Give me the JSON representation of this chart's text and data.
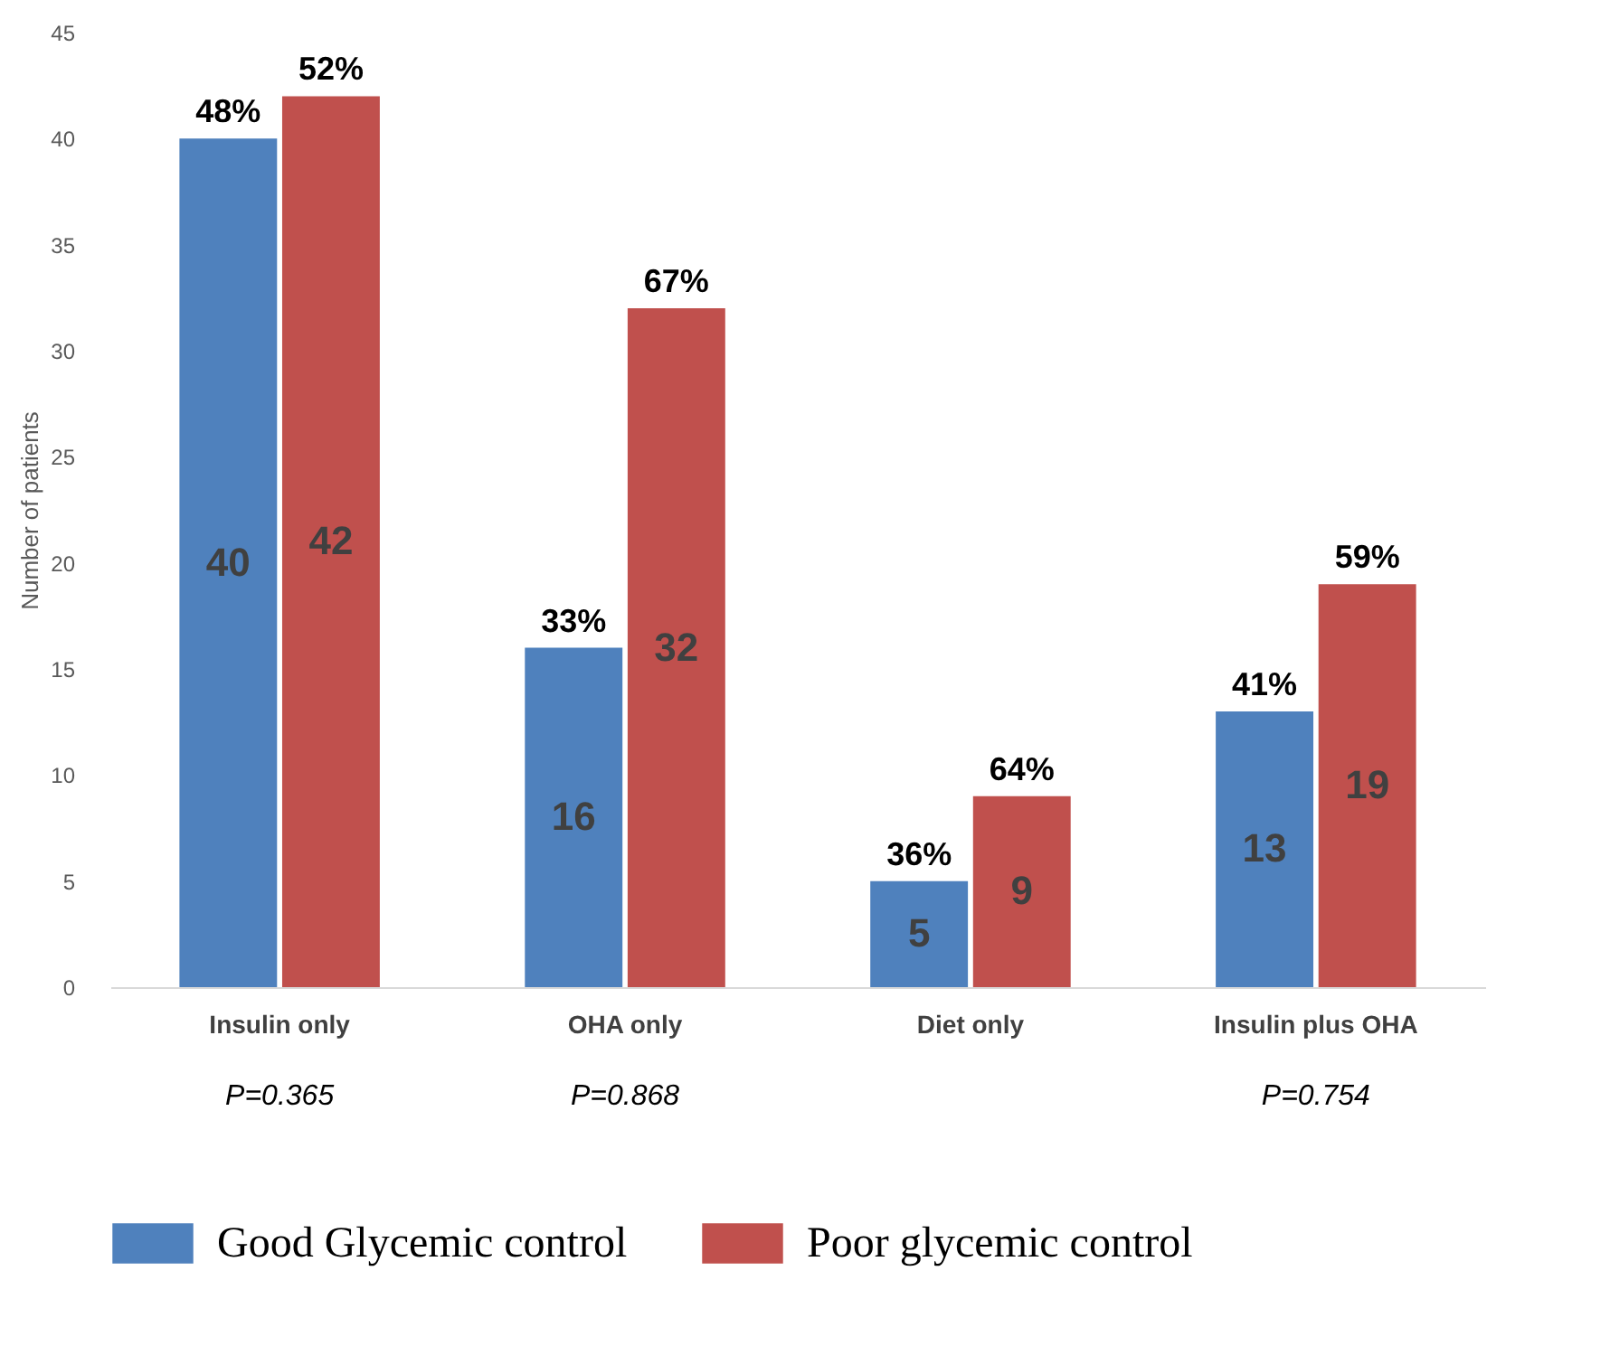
{
  "chart_data": {
    "type": "bar",
    "ylabel": "Number of patients",
    "categories": [
      "Insulin only",
      "OHA only",
      "Diet only",
      "Insulin plus OHA"
    ],
    "series": [
      {
        "name": "Good Glycemic control",
        "color": "#4f81bd",
        "values": [
          40,
          16,
          5,
          13
        ]
      },
      {
        "name": "Poor glycemic control",
        "color": "#c0504d",
        "values": [
          42,
          32,
          9,
          19
        ]
      }
    ],
    "ylim": [
      0,
      45
    ],
    "yticks": [
      0,
      5,
      10,
      15,
      20,
      25,
      30,
      35,
      40,
      45
    ],
    "grid": false,
    "legend": "bottom",
    "data_labels": true,
    "annotations": [
      {
        "text": "48%",
        "x": "Insulin only",
        "y": 40
      },
      {
        "text": "52%",
        "x": "Insulin only",
        "y": 42
      },
      {
        "text": "33%",
        "x": "OHA only",
        "y": 16
      },
      {
        "text": "67%",
        "x": "OHA only",
        "y": 32
      },
      {
        "text": "36%",
        "x": "Diet only",
        "y": 5
      },
      {
        "text": "64%",
        "x": "Diet only",
        "y": 9
      },
      {
        "text": "41%",
        "x": "Insulin plus OHA",
        "y": 13
      },
      {
        "text": "59%",
        "x": "Insulin plus OHA",
        "y": 19
      },
      "P=0.365",
      "P=0.868",
      "P=0.754"
    ]
  }
}
